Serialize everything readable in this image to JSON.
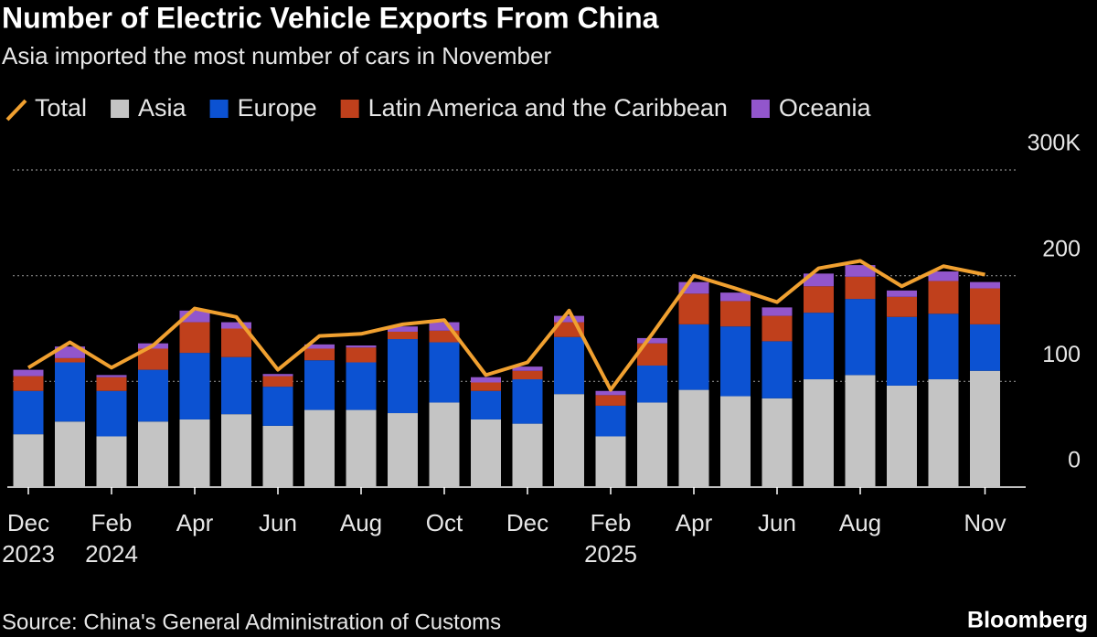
{
  "chart_data": {
    "type": "bar",
    "stacked": true,
    "title": "Number of Electric Vehicle Exports From China",
    "subtitle": "Asia imported the most number of cars in November",
    "source": "Source: China's General Administration of Customs",
    "brand": "Bloomberg",
    "categories": [
      "Dec",
      null,
      "Feb",
      null,
      "Apr",
      null,
      "Jun",
      null,
      "Aug",
      null,
      "Oct",
      null,
      "Dec",
      null,
      "Feb",
      null,
      "Apr",
      null,
      "Jun",
      null,
      "Aug",
      null,
      null,
      "Nov"
    ],
    "category_years": [
      "2023",
      null,
      "2024",
      null,
      null,
      null,
      null,
      null,
      null,
      null,
      null,
      null,
      null,
      null,
      "2025",
      null,
      null,
      null,
      null,
      null,
      null,
      null,
      null,
      null
    ],
    "series": [
      {
        "name": "Total",
        "type": "line",
        "color": "#f0a030",
        "values": [
          113,
          137,
          113,
          134,
          169,
          161,
          111,
          143,
          145,
          154,
          158,
          106,
          118,
          167,
          92,
          145,
          200,
          188,
          175,
          207,
          214,
          190,
          209,
          201
        ]
      },
      {
        "name": "Asia",
        "color": "#c4c4c4",
        "values": [
          50,
          62,
          48,
          62,
          64,
          69,
          58,
          73,
          73,
          70,
          80,
          64,
          60,
          88,
          48,
          80,
          92,
          86,
          84,
          102,
          106,
          96,
          102,
          110
        ]
      },
      {
        "name": "Europe",
        "color": "#0c52d2",
        "values": [
          41,
          56,
          43,
          49,
          63,
          54,
          37,
          47,
          45,
          70,
          57,
          27,
          42,
          54,
          29,
          35,
          62,
          66,
          54,
          63,
          72,
          65,
          62,
          44
        ]
      },
      {
        "name": "Latin America and the Caribbean",
        "color": "#c0401c",
        "values": [
          14,
          4,
          13,
          20,
          29,
          27,
          10,
          11,
          14,
          7,
          11,
          8,
          8,
          14,
          10,
          21,
          29,
          24,
          24,
          25,
          21,
          19,
          31,
          34
        ]
      },
      {
        "name": "Oceania",
        "color": "#9256cc",
        "values": [
          6,
          11,
          2,
          5,
          11,
          6,
          2,
          4,
          2,
          5,
          8,
          5,
          4,
          6,
          4,
          5,
          11,
          8,
          8,
          12,
          11,
          6,
          9,
          6
        ]
      }
    ],
    "ylim": [
      0,
      300
    ],
    "yticks": [
      0,
      100,
      200,
      {
        "value": 300,
        "label": "300K"
      }
    ],
    "grid": true
  }
}
